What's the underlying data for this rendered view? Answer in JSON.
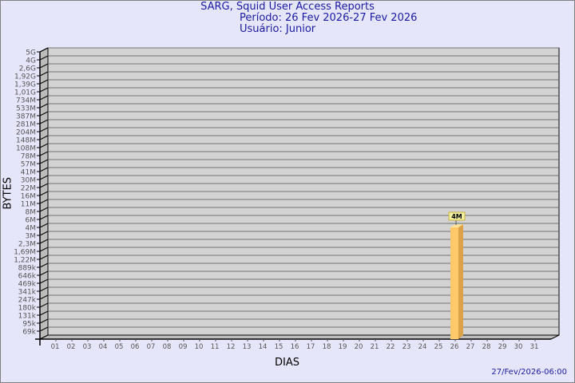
{
  "header": {
    "title": "SARG, Squid User Access Reports",
    "period": "Período: 26 Fev 2026-27 Fev 2026",
    "user": "Usuário: Junior"
  },
  "timestamp": "27/Fev/2026-06:00",
  "colors": {
    "background": "#e6e6fa",
    "plot": "#d3d3d3",
    "bar": "#ffc868",
    "bar_side": "#dca24a",
    "title": "#1a1aa0"
  },
  "chart_data": {
    "type": "bar",
    "title": "SARG, Squid User Access Reports",
    "xlabel": "DIAS",
    "ylabel": "BYTES",
    "y_scale": "log",
    "grid": true,
    "y_ticks": [
      "5G",
      "4G",
      "2,6G",
      "1,92G",
      "1,39G",
      "1,01G",
      "734M",
      "533M",
      "387M",
      "281M",
      "204M",
      "148M",
      "108M",
      "78M",
      "57M",
      "41M",
      "30M",
      "22M",
      "16M",
      "11M",
      "8M",
      "6M",
      "4M",
      "3M",
      "2,3M",
      "1,69M",
      "1,22M",
      "889k",
      "646k",
      "469k",
      "341k",
      "247k",
      "180k",
      "131k",
      "95k",
      "69k"
    ],
    "categories": [
      "01",
      "02",
      "03",
      "04",
      "05",
      "06",
      "07",
      "08",
      "09",
      "10",
      "11",
      "12",
      "13",
      "14",
      "15",
      "16",
      "17",
      "18",
      "19",
      "20",
      "21",
      "22",
      "23",
      "24",
      "25",
      "26",
      "27",
      "28",
      "29",
      "30",
      "31"
    ],
    "bars": [
      {
        "category": "26",
        "value_label": "4M"
      }
    ]
  }
}
